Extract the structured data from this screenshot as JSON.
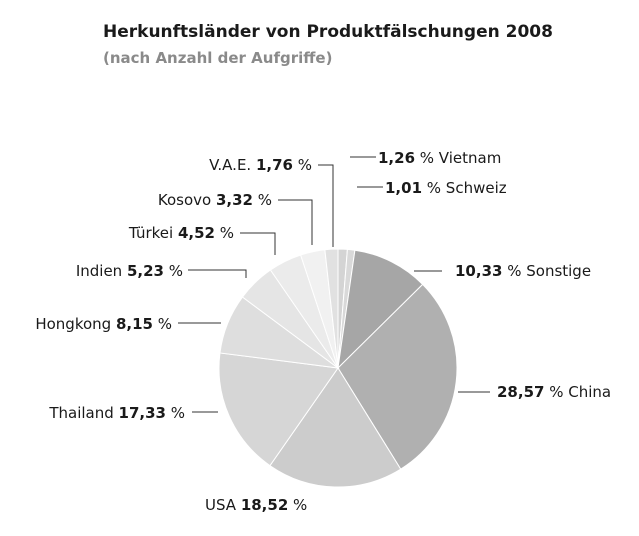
{
  "title": "Herkunftsländer von Produktfälschungen 2008",
  "subtitle": "(nach Anzahl der Aufgriffe)",
  "chart_data": {
    "type": "pie",
    "title": "Herkunftsländer von Produktfälschungen 2008",
    "subtitle": "(nach Anzahl der Aufgriffe)",
    "unit": "%",
    "slices": [
      {
        "name": "Vietnam",
        "value": 1.26,
        "value_label": "1,26",
        "color": "#d4d4d4"
      },
      {
        "name": "Schweiz",
        "value": 1.01,
        "value_label": "1,01",
        "color": "#d9d9d9"
      },
      {
        "name": "Sonstige",
        "value": 10.33,
        "value_label": "10,33",
        "color": "#a6a6a6"
      },
      {
        "name": "China",
        "value": 28.57,
        "value_label": "28,57",
        "color": "#b0b0b0"
      },
      {
        "name": "USA",
        "value": 18.52,
        "value_label": "18,52",
        "color": "#cccccc"
      },
      {
        "name": "Thailand",
        "value": 17.33,
        "value_label": "17,33",
        "color": "#d6d6d6"
      },
      {
        "name": "Hongkong",
        "value": 8.15,
        "value_label": "8,15",
        "color": "#dedede"
      },
      {
        "name": "Indien",
        "value": 5.23,
        "value_label": "5,23",
        "color": "#e5e5e5"
      },
      {
        "name": "Türkei",
        "value": 4.52,
        "value_label": "4,52",
        "color": "#ebebeb"
      },
      {
        "name": "Kosovo",
        "value": 3.32,
        "value_label": "3,32",
        "color": "#f1f1f1"
      },
      {
        "name": "V.A.E.",
        "value": 1.76,
        "value_label": "1,76",
        "color": "#e1e1e1"
      }
    ]
  }
}
